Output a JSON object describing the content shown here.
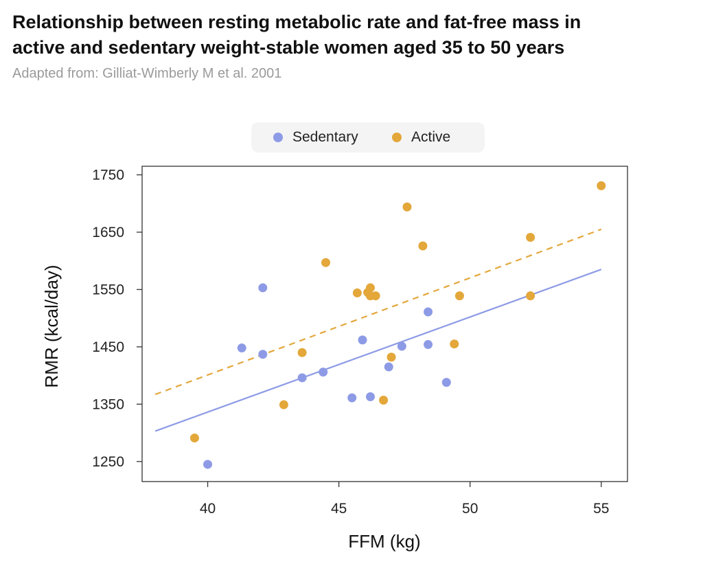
{
  "header": {
    "title_line1": "Relationship between resting metabolic rate and fat-free mass in",
    "title_line2": "active and sedentary weight-stable women aged 35 to 50 years",
    "subtitle": "Adapted from: Gilliat-Wimberly M et al. 2001"
  },
  "colors": {
    "sedentary": "#8d9be6",
    "active": "#e3a73a",
    "axis": "#333333"
  },
  "chart_data": {
    "type": "scatter",
    "title": "Relationship between resting metabolic rate and fat-free mass in active and sedentary weight-stable women aged 35 to 50 years",
    "subtitle": "Adapted from: Gilliat-Wimberly M et al. 2001",
    "xlabel": "FFM (kg)",
    "ylabel": "RMR (kcal/day)",
    "xlim": [
      37.5,
      56
    ],
    "ylim": [
      1215,
      1765
    ],
    "xticks": [
      40,
      45,
      50,
      55
    ],
    "yticks": [
      1250,
      1350,
      1450,
      1550,
      1650,
      1750
    ],
    "grid": false,
    "legend_position": "top-center",
    "series": [
      {
        "name": "Sedentary",
        "color": "#8d9be6",
        "points": [
          [
            40.0,
            1245
          ],
          [
            41.3,
            1448
          ],
          [
            42.1,
            1553
          ],
          [
            42.1,
            1437
          ],
          [
            43.6,
            1396
          ],
          [
            44.4,
            1406
          ],
          [
            45.5,
            1361
          ],
          [
            45.9,
            1462
          ],
          [
            46.2,
            1363
          ],
          [
            46.9,
            1415
          ],
          [
            47.4,
            1451
          ],
          [
            48.4,
            1511
          ],
          [
            48.4,
            1454
          ],
          [
            49.1,
            1388
          ]
        ],
        "trend": {
          "x": [
            38,
            55
          ],
          "y": [
            1303,
            1585
          ],
          "style": "solid"
        }
      },
      {
        "name": "Active",
        "color": "#e3a73a",
        "points": [
          [
            39.5,
            1291
          ],
          [
            42.9,
            1349
          ],
          [
            43.6,
            1440
          ],
          [
            44.5,
            1597
          ],
          [
            45.7,
            1544
          ],
          [
            46.1,
            1545
          ],
          [
            46.2,
            1553
          ],
          [
            46.2,
            1539
          ],
          [
            46.4,
            1539
          ],
          [
            46.7,
            1357
          ],
          [
            47.0,
            1432
          ],
          [
            47.6,
            1694
          ],
          [
            48.2,
            1626
          ],
          [
            49.4,
            1455
          ],
          [
            49.6,
            1539
          ],
          [
            52.3,
            1641
          ],
          [
            52.3,
            1539
          ],
          [
            55.0,
            1731
          ]
        ],
        "trend": {
          "x": [
            38,
            55
          ],
          "y": [
            1367,
            1655
          ],
          "style": "dashed"
        }
      }
    ]
  }
}
